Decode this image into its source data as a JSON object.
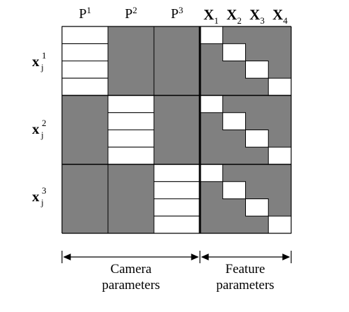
{
  "column_headers": {
    "camera": [
      {
        "base": "P",
        "sup": "1"
      },
      {
        "base": "P",
        "sup": "2"
      },
      {
        "base": "P",
        "sup": "3"
      }
    ],
    "feature": [
      {
        "base": "X",
        "sub": "1"
      },
      {
        "base": "X",
        "sub": "2"
      },
      {
        "base": "X",
        "sub": "3"
      },
      {
        "base": "X",
        "sub": "4"
      }
    ]
  },
  "row_headers": [
    {
      "base": "x",
      "sub": "j",
      "sup": "1"
    },
    {
      "base": "x",
      "sub": "j",
      "sup": "2"
    },
    {
      "base": "x",
      "sub": "j",
      "sup": "3"
    }
  ],
  "bracket_labels": {
    "camera": [
      "Camera",
      "parameters"
    ],
    "feature": [
      "Feature",
      "parameters"
    ]
  },
  "colors": {
    "filled": "#808080",
    "empty": "#ffffff",
    "line": "#000000"
  }
}
